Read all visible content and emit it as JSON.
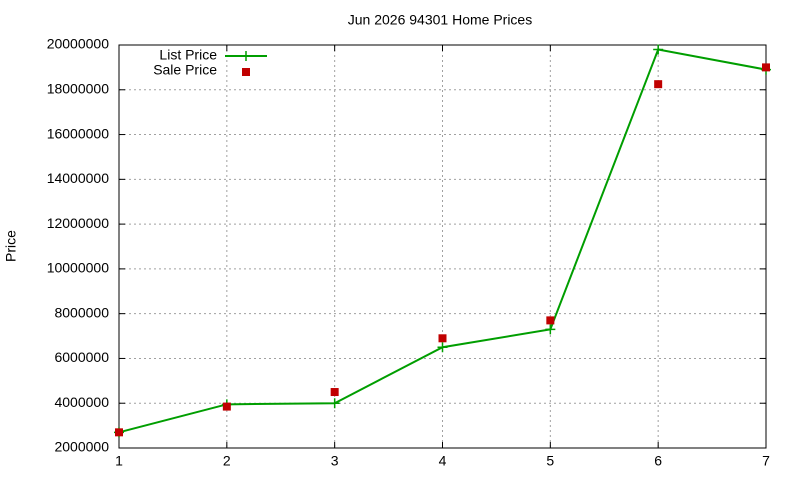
{
  "chart_data": {
    "type": "line",
    "title": "Jun 2026 94301 Home Prices",
    "y_label": "Price",
    "x": [
      1,
      2,
      3,
      4,
      5,
      6,
      7
    ],
    "series": [
      {
        "name": "List Price",
        "color": "#009e00",
        "style": "linespoints",
        "values": [
          2700000,
          3950000,
          4000000,
          6500000,
          7300000,
          19800000,
          18900000
        ]
      },
      {
        "name": "Sale Price",
        "color": "#c00000",
        "style": "points",
        "values": [
          2700000,
          3850000,
          4500000,
          6900000,
          7700000,
          18250000,
          19000000
        ]
      }
    ],
    "xlim": [
      1,
      7
    ],
    "xticks": [
      1,
      2,
      3,
      4,
      5,
      6,
      7
    ],
    "ylim": [
      2000000,
      20000000
    ],
    "yticks": [
      2000000,
      4000000,
      6000000,
      8000000,
      10000000,
      12000000,
      14000000,
      16000000,
      18000000,
      20000000
    ],
    "grid": true,
    "legend_position": "top-left"
  }
}
